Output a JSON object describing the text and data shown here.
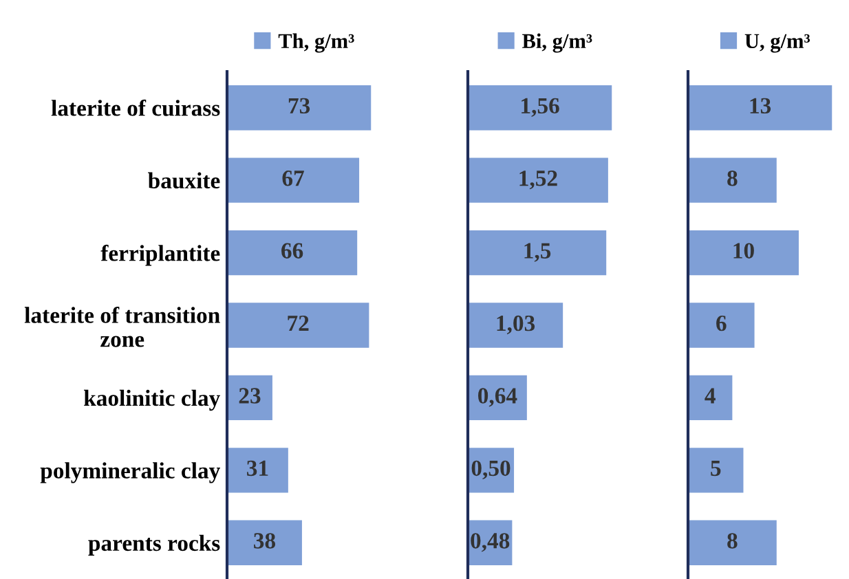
{
  "chart_data": [
    {
      "type": "bar",
      "orientation": "horizontal",
      "categories": [
        "laterite of cuirass",
        "bauxite",
        "ferriplantite",
        "laterite of transition zone",
        "kaolinitic clay",
        "polymineralic clay",
        "parents rocks"
      ],
      "series": [
        {
          "name": "Th, g/m³",
          "color": "#7f9fd6",
          "values": [
            73,
            67,
            66,
            72,
            23,
            31,
            38
          ]
        }
      ],
      "data_labels": true,
      "legend": "top",
      "tick_labels": "y"
    },
    {
      "type": "bar",
      "orientation": "horizontal",
      "categories": [
        null,
        null,
        null,
        null,
        null,
        null,
        null
      ],
      "series": [
        {
          "name": "Bi, g/m³",
          "color": "#7f9fd6",
          "values": [
            1.56,
            1.52,
            1.5,
            1.03,
            0.64,
            0.5,
            0.48
          ],
          "value_labels": [
            "1,56",
            "1,52",
            "1,5",
            "1,03",
            "0,64",
            "0,50",
            "0,48"
          ]
        }
      ],
      "legend": "top",
      "tick_labels": false
    },
    {
      "type": "bar",
      "orientation": "horizontal",
      "categories": [
        null,
        null,
        null,
        null,
        null,
        null,
        null
      ],
      "series": [
        {
          "name": "U, g/m³",
          "color": "#7f9fd6",
          "values": [
            13,
            8,
            10,
            6,
            4,
            5,
            8
          ]
        }
      ],
      "data_labels": true,
      "legend": "top",
      "tick_labels": false
    }
  ]
}
